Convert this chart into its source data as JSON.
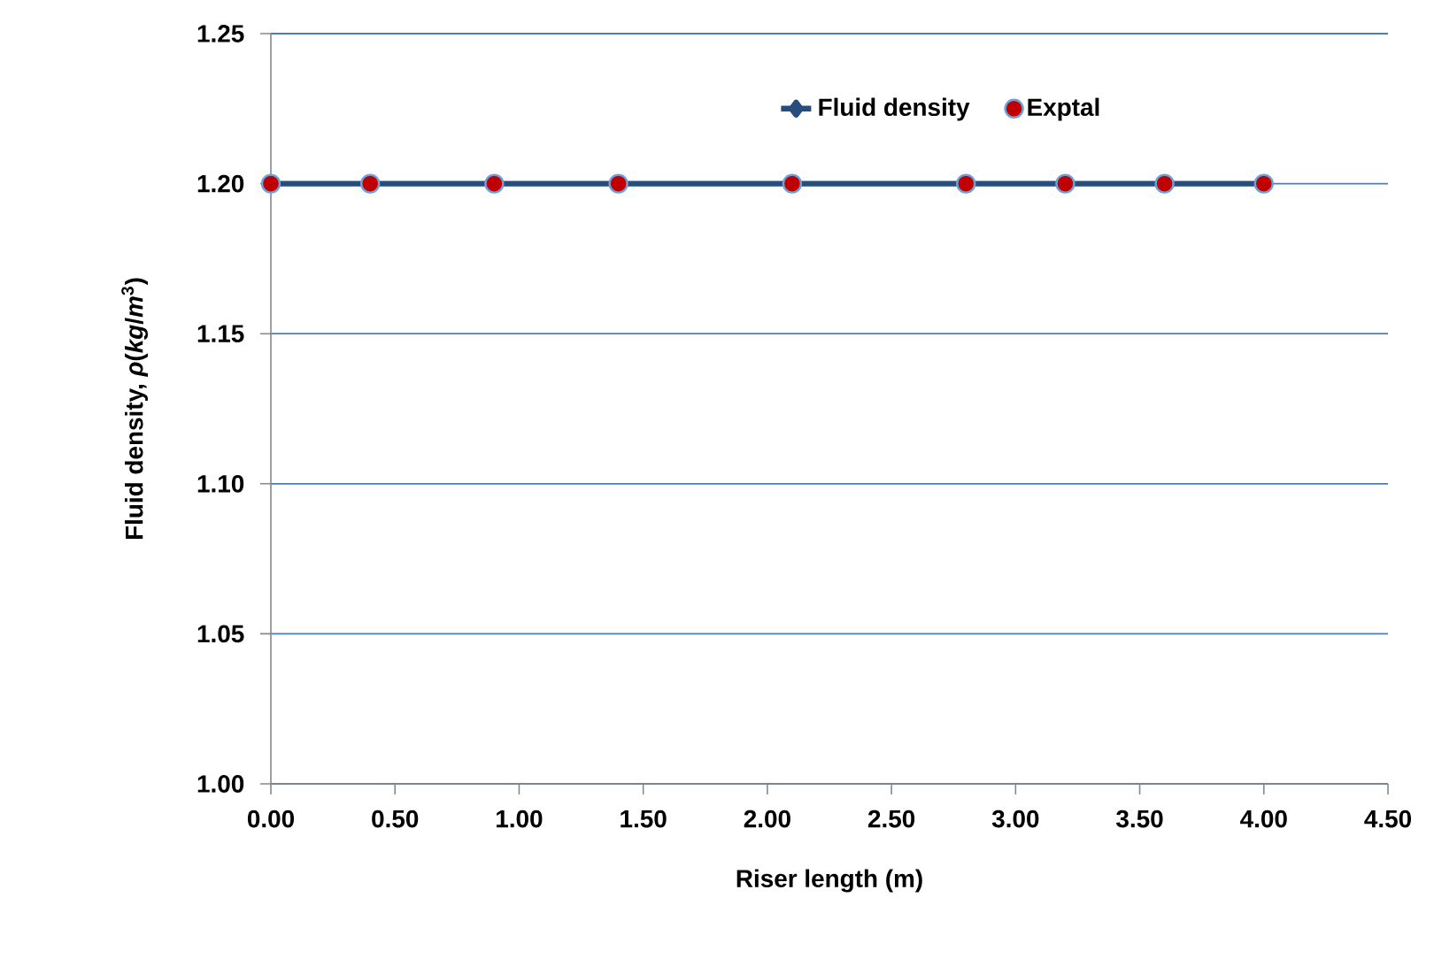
{
  "chart_data": {
    "type": "line",
    "xlabel": "Riser length (m)",
    "ylabel": "Fluid density, *ρ*(*kg*/*m*$^{3}$)",
    "series": [
      {
        "name": "Fluid density",
        "color": "#254e7f",
        "marker": "diamond",
        "line_style": "solid",
        "x": [
          0,
          0.4,
          0.9,
          1.4,
          2.1,
          2.8,
          3.2,
          3.6,
          4.0
        ],
        "values": [
          1.2,
          1.2,
          1.2,
          1.2,
          1.2,
          1.2,
          1.2,
          1.2,
          1.2
        ]
      },
      {
        "name": "Exptal",
        "type": "scatter",
        "color": "#c00000",
        "marker": "circle",
        "x": [
          0,
          0.4,
          0.9,
          1.4,
          2.1,
          2.8,
          3.2,
          3.6,
          4.0
        ],
        "values": [
          1.2,
          1.2,
          1.2,
          1.2,
          1.2,
          1.2,
          1.2,
          1.2,
          1.2
        ]
      }
    ],
    "xlim": [
      0,
      4.5
    ],
    "ylim": [
      1.0,
      1.25
    ],
    "xticks": [
      {
        "value": 0,
        "label": "0.00"
      },
      {
        "value": 0.5,
        "label": "0.50"
      },
      {
        "value": 1,
        "label": "1.00"
      },
      {
        "value": 1.5,
        "label": "1.50"
      },
      {
        "value": 2,
        "label": "2.00"
      },
      {
        "value": 2.5,
        "label": "2.50"
      },
      {
        "value": 3,
        "label": "3.00"
      },
      {
        "value": 3.5,
        "label": "3.50"
      },
      {
        "value": 4,
        "label": "4.00"
      },
      {
        "value": 4.5,
        "label": "4.50"
      }
    ],
    "yticks": [
      {
        "value": 1.0,
        "label": "1.00"
      },
      {
        "value": 1.05,
        "label": "1.05"
      },
      {
        "value": 1.1,
        "label": "1.10"
      },
      {
        "value": 1.15,
        "label": "1.15"
      },
      {
        "value": 1.2,
        "label": "1.20"
      },
      {
        "value": 1.25,
        "label": "1.25"
      }
    ],
    "grid": "y",
    "legend": "top"
  }
}
